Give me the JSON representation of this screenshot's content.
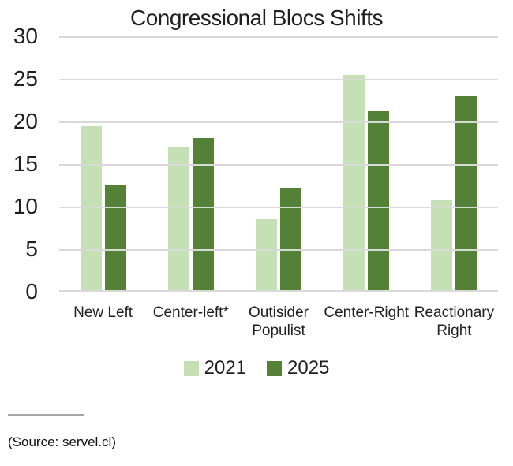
{
  "title": "Congressional Blocs Shifts",
  "source_note": "(Source: servel.cl)",
  "colors": {
    "series_2021": "#c5e0b4",
    "series_2025": "#538135",
    "gridline": "#d9d9d9",
    "divider": "#a6a6a6",
    "text": "#1f1f1f"
  },
  "chart_data": {
    "type": "bar",
    "title": "Congressional Blocs Shifts",
    "categories": [
      "New Left",
      "Center-left*",
      "Outisider Populist",
      "Center-Right",
      "Reactionary Right"
    ],
    "series": [
      {
        "name": "2021",
        "color": "#c5e0b4",
        "values": [
          19.4,
          16.9,
          8.5,
          25.5,
          10.7
        ]
      },
      {
        "name": "2025",
        "color": "#538135",
        "values": [
          12.6,
          18.1,
          12.1,
          21.2,
          23.0
        ]
      }
    ],
    "xlabel": "",
    "ylabel": "",
    "ylim": [
      0,
      30
    ],
    "yticks": [
      0,
      5,
      10,
      15,
      20,
      25,
      30
    ],
    "grid": true,
    "legend_position": "bottom"
  }
}
